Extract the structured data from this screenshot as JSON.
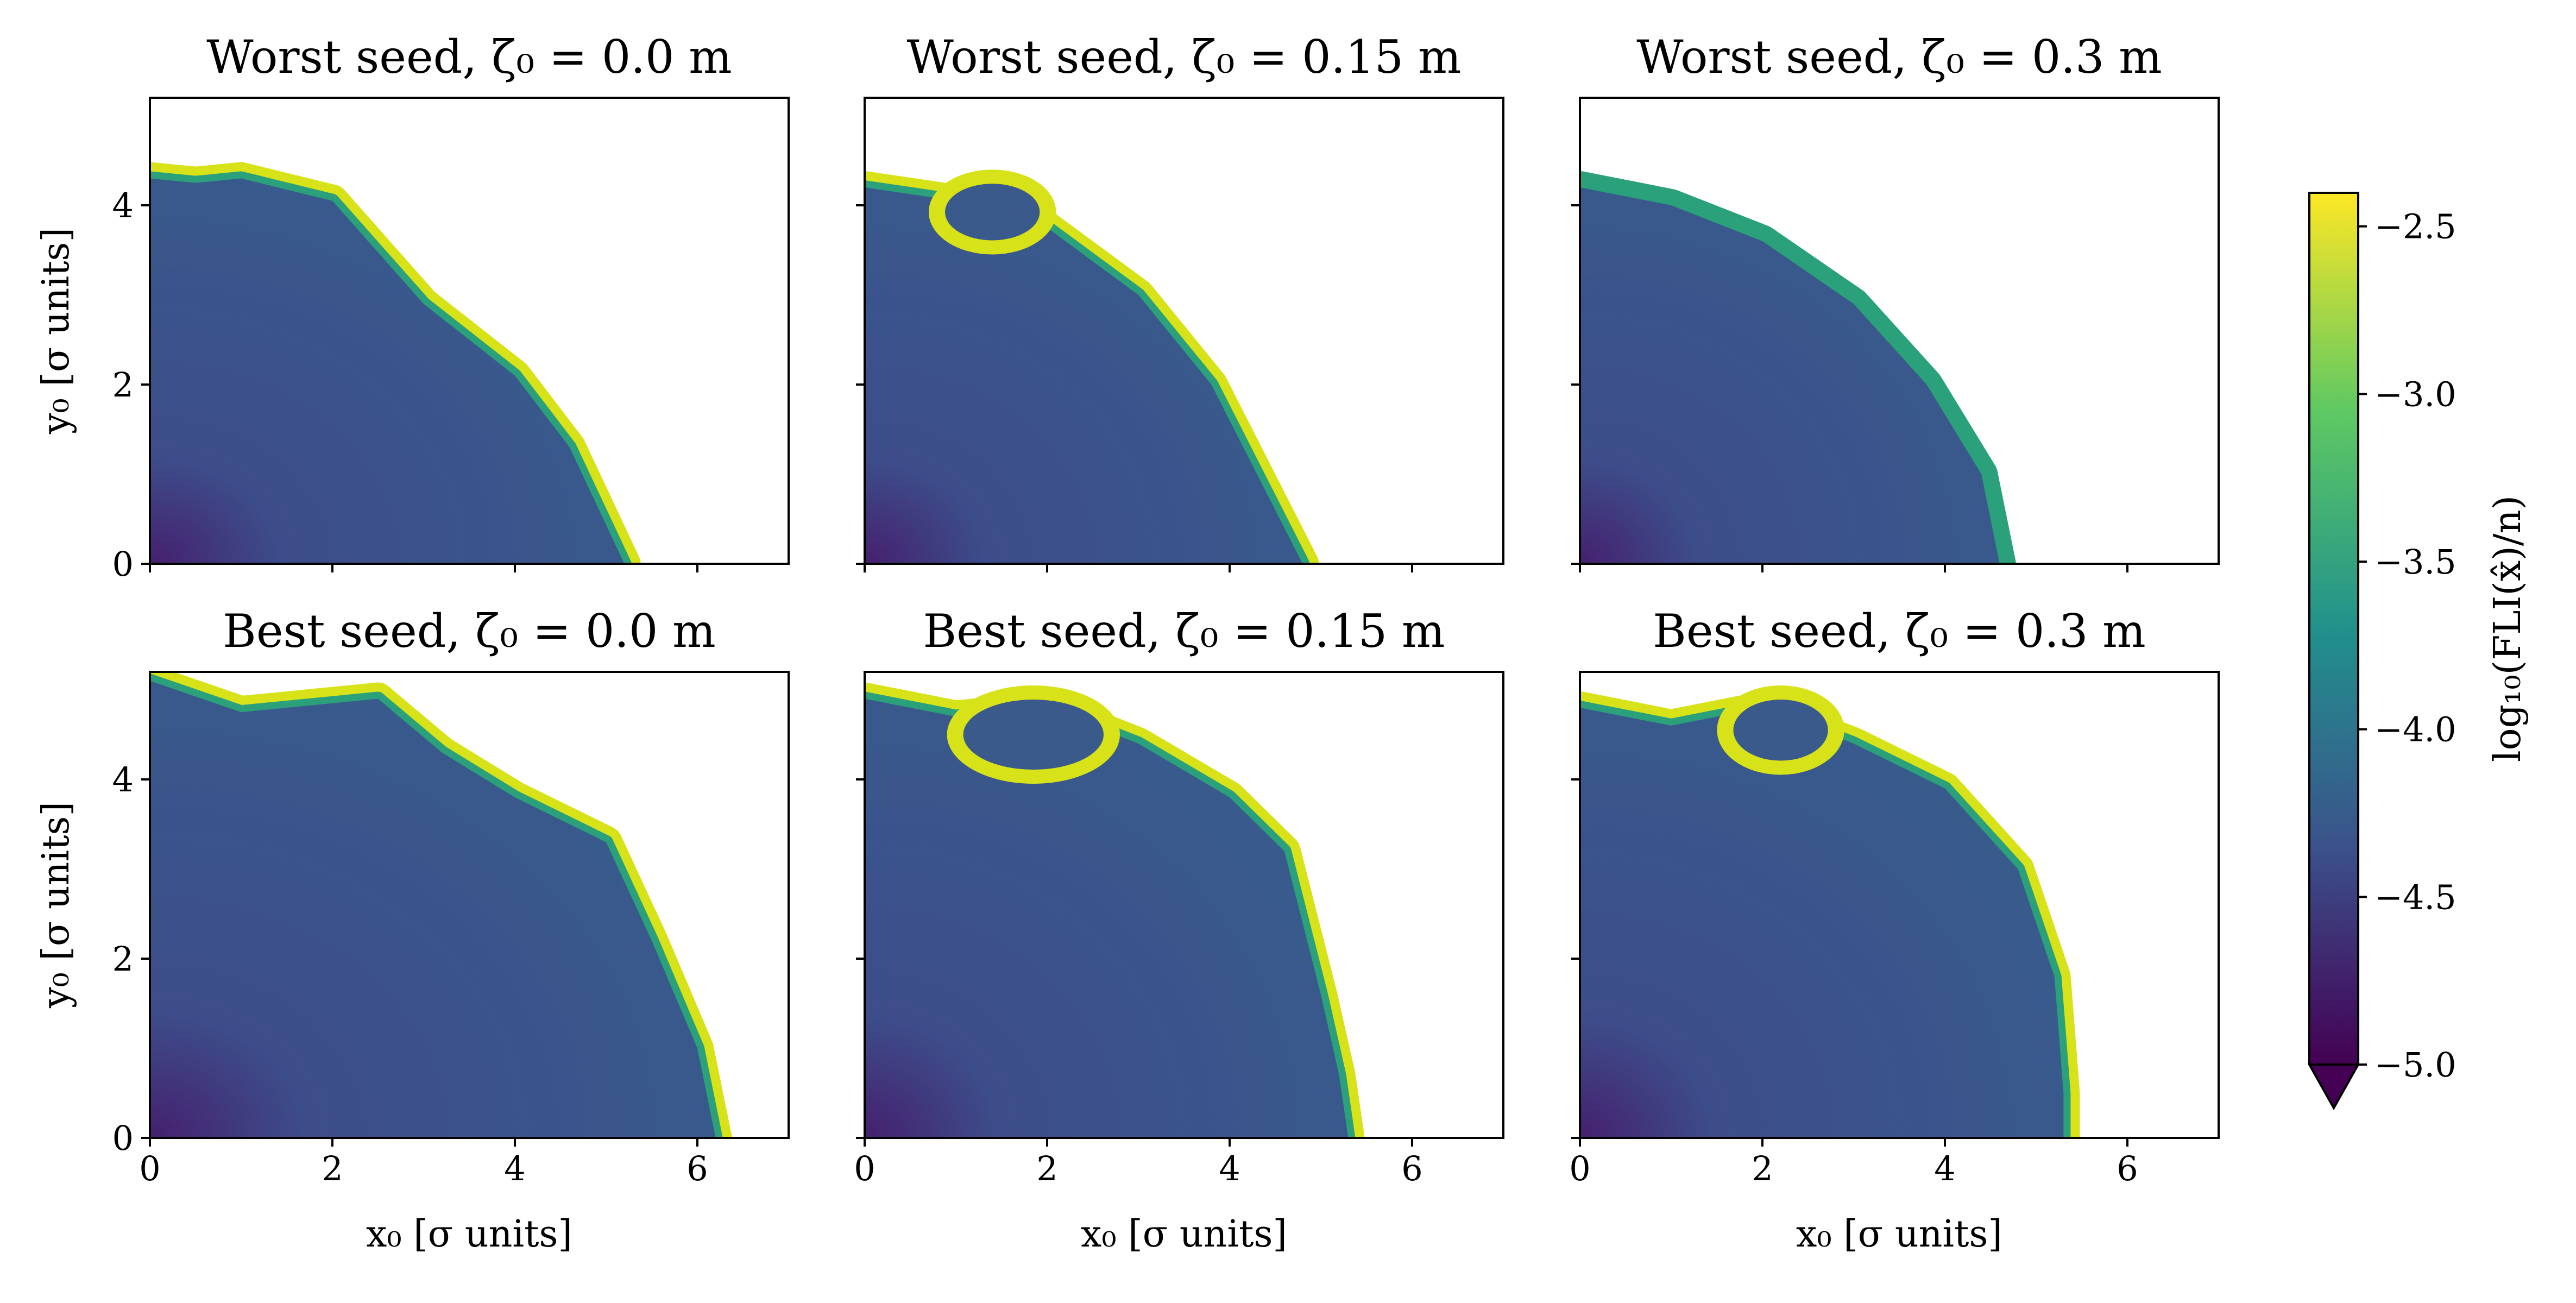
{
  "chart_data": [
    {
      "type": "heatmap",
      "title": "Worst seed, ζ₀ = 0.0 m",
      "xlabel": "",
      "ylabel": "y₀ [σ units]",
      "xlim": [
        0,
        7
      ],
      "ylim": [
        0,
        5.2
      ],
      "xticks": [
        0,
        2,
        4,
        6
      ],
      "yticks": [
        0,
        2,
        4
      ],
      "xtick_labels_shown": false,
      "ytick_labels_shown": true,
      "stable_boundary": [
        [
          0,
          4.3
        ],
        [
          0.5,
          4.25
        ],
        [
          1.0,
          4.3
        ],
        [
          2.0,
          4.05
        ],
        [
          3.0,
          2.9
        ],
        [
          4.0,
          2.1
        ],
        [
          4.6,
          1.3
        ],
        [
          5.2,
          0.0
        ]
      ],
      "yellow_edge_band": true,
      "island": []
    },
    {
      "type": "heatmap",
      "title": "Worst seed, ζ₀ = 0.15 m",
      "xlabel": "",
      "ylabel": "",
      "xlim": [
        0,
        7
      ],
      "ylim": [
        0,
        5.2
      ],
      "xticks": [
        0,
        2,
        4,
        6
      ],
      "yticks": [
        0,
        2,
        4
      ],
      "xtick_labels_shown": false,
      "ytick_labels_shown": false,
      "stable_boundary": [
        [
          0,
          4.2
        ],
        [
          1.0,
          4.05
        ],
        [
          2.0,
          3.75
        ],
        [
          3.0,
          3.0
        ],
        [
          3.8,
          2.0
        ],
        [
          4.3,
          1.0
        ],
        [
          4.8,
          0.0
        ]
      ],
      "yellow_edge_band": true,
      "island": [
        [
          1.0,
          3.95
        ],
        [
          1.8,
          3.9
        ]
      ]
    },
    {
      "type": "heatmap",
      "title": "Worst seed, ζ₀ = 0.3 m",
      "xlabel": "",
      "ylabel": "",
      "xlim": [
        0,
        7
      ],
      "ylim": [
        0,
        5.2
      ],
      "xticks": [
        0,
        2,
        4,
        6
      ],
      "yticks": [
        0,
        2,
        4
      ],
      "xtick_labels_shown": false,
      "ytick_labels_shown": false,
      "stable_boundary": [
        [
          0,
          4.2
        ],
        [
          1.0,
          4.0
        ],
        [
          2.0,
          3.6
        ],
        [
          3.0,
          2.9
        ],
        [
          3.8,
          2.0
        ],
        [
          4.4,
          1.0
        ],
        [
          4.6,
          0.0
        ]
      ],
      "yellow_edge_band": false,
      "island": []
    },
    {
      "type": "heatmap",
      "title": "Best seed, ζ₀ = 0.0 m",
      "xlabel": "x₀ [σ units]",
      "ylabel": "y₀ [σ units]",
      "xlim": [
        0,
        7
      ],
      "ylim": [
        0,
        5.2
      ],
      "xticks": [
        0,
        2,
        4,
        6
      ],
      "yticks": [
        0,
        2,
        4
      ],
      "xtick_labels_shown": true,
      "ytick_labels_shown": true,
      "stable_boundary": [
        [
          0,
          5.1
        ],
        [
          1.0,
          4.75
        ],
        [
          2.5,
          4.9
        ],
        [
          3.2,
          4.3
        ],
        [
          4.0,
          3.8
        ],
        [
          5.0,
          3.3
        ],
        [
          5.5,
          2.2
        ],
        [
          6.0,
          1.0
        ],
        [
          6.2,
          0.0
        ]
      ],
      "yellow_edge_band": true,
      "island": []
    },
    {
      "type": "heatmap",
      "title": "Best seed, ζ₀ = 0.15 m",
      "xlabel": "x₀ [σ units]",
      "ylabel": "",
      "xlim": [
        0,
        7
      ],
      "ylim": [
        0,
        5.2
      ],
      "xticks": [
        0,
        2,
        4,
        6
      ],
      "yticks": [
        0,
        2,
        4
      ],
      "xtick_labels_shown": true,
      "ytick_labels_shown": false,
      "stable_boundary": [
        [
          0,
          4.9
        ],
        [
          1.0,
          4.7
        ],
        [
          2.0,
          4.8
        ],
        [
          3.0,
          4.4
        ],
        [
          4.0,
          3.8
        ],
        [
          4.6,
          3.2
        ],
        [
          5.0,
          1.6
        ],
        [
          5.2,
          0.7
        ],
        [
          5.3,
          0.0
        ]
      ],
      "yellow_edge_band": true,
      "island": [
        [
          1.2,
          4.4
        ],
        [
          2.5,
          4.6
        ]
      ]
    },
    {
      "type": "heatmap",
      "title": "Best seed, ζ₀ = 0.3 m",
      "xlabel": "x₀ [σ units]",
      "ylabel": "",
      "xlim": [
        0,
        7
      ],
      "ylim": [
        0,
        5.2
      ],
      "xticks": [
        0,
        2,
        4,
        6
      ],
      "yticks": [
        0,
        2,
        4
      ],
      "xtick_labels_shown": true,
      "ytick_labels_shown": false,
      "stable_boundary": [
        [
          0,
          4.8
        ],
        [
          1.0,
          4.6
        ],
        [
          2.0,
          4.8
        ],
        [
          3.0,
          4.4
        ],
        [
          4.0,
          3.9
        ],
        [
          4.8,
          3.0
        ],
        [
          5.2,
          1.8
        ],
        [
          5.3,
          0.5
        ],
        [
          5.3,
          0.0
        ]
      ],
      "yellow_edge_band": true,
      "island": [
        [
          1.8,
          4.5
        ],
        [
          2.6,
          4.6
        ]
      ]
    }
  ],
  "colorbar": {
    "label": "log₁₀(FLI(x̂)/n)",
    "range": [
      -5.0,
      -2.4
    ],
    "extend": "min",
    "ticks": [
      "−2.5",
      "−3.0",
      "−3.5",
      "−4.0",
      "−4.5",
      "−5.0"
    ],
    "tick_values": [
      -2.5,
      -3.0,
      -3.5,
      -4.0,
      -4.5,
      -5.0
    ],
    "colormap": [
      "#440154",
      "#3b528b",
      "#21918c",
      "#5ec962",
      "#fde725"
    ]
  },
  "x_tick_labels": [
    "0",
    "2",
    "4",
    "6"
  ],
  "y_tick_labels": [
    "0",
    "2",
    "4"
  ],
  "colors": {
    "stable_core": "#3b5a8c",
    "core_deep": "#46307e",
    "edge_green": "#2aa17a",
    "edge_yellow": "#d8e219"
  }
}
